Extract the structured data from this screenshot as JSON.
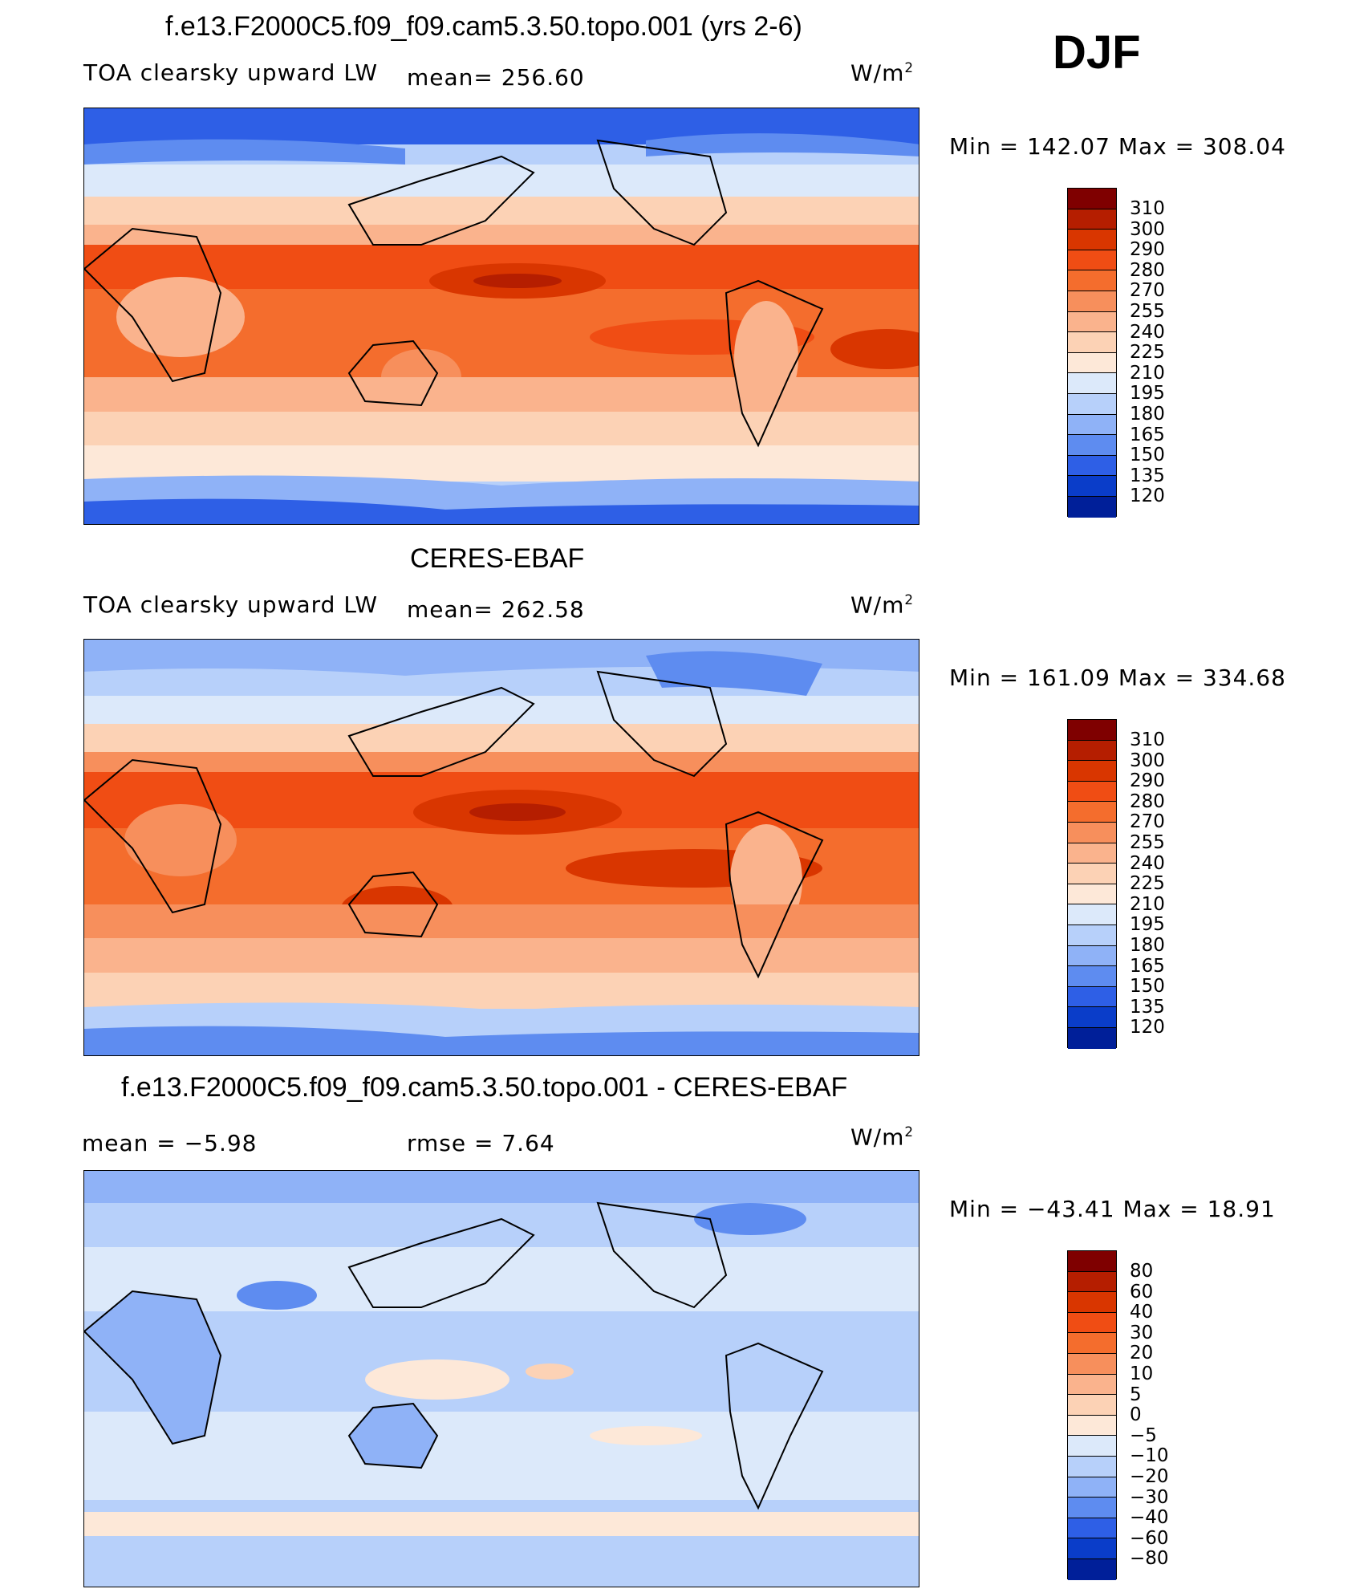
{
  "header": {
    "season": "DJF"
  },
  "panels": [
    {
      "title": "f.e13.F2000C5.f09_f09.cam5.3.50.topo.001 (yrs 2-6)",
      "left_label": "TOA clearsky upward LW",
      "mean_label": "mean=  256.60",
      "units": "W/m",
      "units_exp": "2",
      "minmax": "Min  =  142.07  Max  =  308.04"
    },
    {
      "title": "CERES-EBAF",
      "left_label": "TOA clearsky upward LW",
      "mean_label": "mean=  262.58",
      "units": "W/m",
      "units_exp": "2",
      "minmax": "Min  =  161.09  Max  =  334.68"
    },
    {
      "title": "f.e13.F2000C5.f09_f09.cam5.3.50.topo.001 - CERES-EBAF",
      "left_label": "mean =    −5.98",
      "mean_label": "rmse =     7.64",
      "units": "W/m",
      "units_exp": "2",
      "minmax": "Min  =  −43.41  Max  =    18.91"
    }
  ],
  "colorbars": {
    "absolute": {
      "levels": [
        "310",
        "300",
        "290",
        "280",
        "270",
        "255",
        "240",
        "225",
        "210",
        "195",
        "180",
        "165",
        "150",
        "135",
        "120"
      ],
      "colors": [
        "#7f0000",
        "#b51e00",
        "#d93600",
        "#f04d14",
        "#f46d2d",
        "#f78f5c",
        "#fab38d",
        "#fcd2b5",
        "#fde8d8",
        "#dce9fa",
        "#b7d0fa",
        "#8fb2f7",
        "#5e8cf0",
        "#2e5fe6",
        "#0a3dc9",
        "#001f99"
      ]
    },
    "difference": {
      "levels": [
        "80",
        "60",
        "40",
        "30",
        "20",
        "10",
        "5",
        "0",
        "−5",
        "−10",
        "−20",
        "−30",
        "−40",
        "−60",
        "−80"
      ],
      "colors": [
        "#7f0000",
        "#b51e00",
        "#d93600",
        "#f04d14",
        "#f46d2d",
        "#f78f5c",
        "#fab38d",
        "#fcd2b5",
        "#fde8d8",
        "#dce9fa",
        "#b7d0fa",
        "#8fb2f7",
        "#5e8cf0",
        "#2e5fe6",
        "#0a3dc9",
        "#001f99"
      ]
    }
  }
}
